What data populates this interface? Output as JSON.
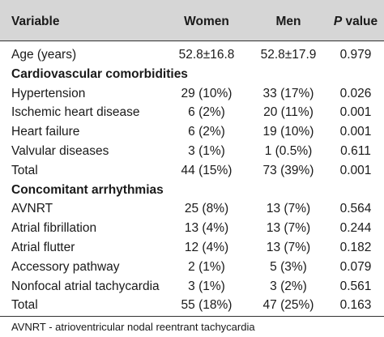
{
  "header": {
    "variable": "Variable",
    "women": "Women",
    "men": "Men",
    "p_italic": "P",
    "p_rest": " value"
  },
  "rows": [
    {
      "label": "Age (years)",
      "women": "52.8±16.8",
      "men": "52.8±17.9",
      "p": "0.979"
    },
    {
      "label": "Cardiovascular comorbidities",
      "section": true
    },
    {
      "label": "Hypertension",
      "women": "29 (10%)",
      "men": "33 (17%)",
      "p": "0.026"
    },
    {
      "label": "Ischemic heart disease",
      "women": "6 (2%)",
      "men": "20 (11%)",
      "p": "0.001"
    },
    {
      "label": "Heart failure",
      "women": "6 (2%)",
      "men": "19 (10%)",
      "p": "0.001"
    },
    {
      "label": "Valvular diseases",
      "women": "3 (1%)",
      "men": "1 (0.5%)",
      "p": "0.611"
    },
    {
      "label": "Total",
      "women": "44 (15%)",
      "men": "73 (39%)",
      "p": "0.001"
    },
    {
      "label": "Concomitant arrhythmias",
      "section": true
    },
    {
      "label": "AVNRT",
      "women": "25 (8%)",
      "men": "13 (7%)",
      "p": "0.564"
    },
    {
      "label": "Atrial fibrillation",
      "women": "13 (4%)",
      "men": "13 (7%)",
      "p": "0.244"
    },
    {
      "label": "Atrial flutter",
      "women": "12 (4%)",
      "men": "13 (7%)",
      "p": "0.182"
    },
    {
      "label": "Accessory pathway",
      "women": "2 (1%)",
      "men": "5 (3%)",
      "p": "0.079"
    },
    {
      "label": "Nonfocal atrial tachycardia",
      "women": "3 (1%)",
      "men": "3 (2%)",
      "p": "0.561"
    },
    {
      "label": "Total",
      "women": "55 (18%)",
      "men": "47 (25%)",
      "p": "0.163"
    }
  ],
  "footnote": "AVNRT - atrioventricular nodal reentrant tachycardia"
}
